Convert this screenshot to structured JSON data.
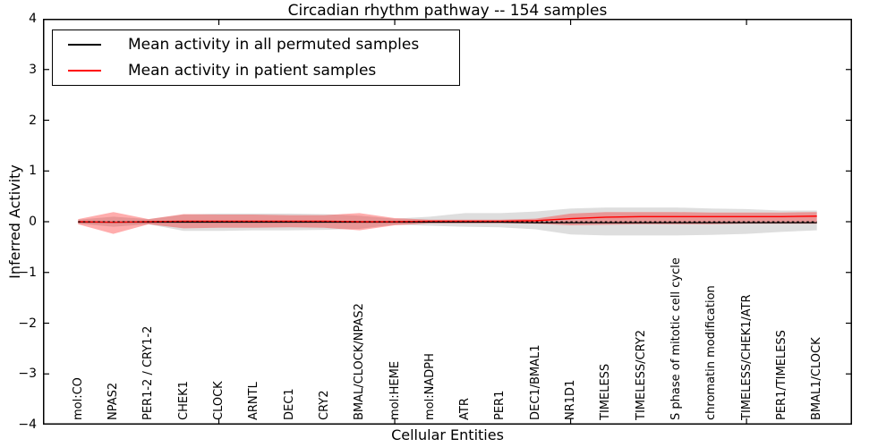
{
  "figure": {
    "title": "Circadian rhythm pathway -- 154 samples",
    "xlabel": "Cellular Entities",
    "ylabel": "Inferred Activity"
  },
  "legend": {
    "items": [
      {
        "label": "Mean activity in all permuted samples",
        "color": "#000000"
      },
      {
        "label": "Mean activity in patient samples",
        "color": "#ff0000"
      }
    ]
  },
  "chart_data": {
    "type": "line",
    "title": "Circadian rhythm pathway -- 154 samples",
    "xlabel": "Cellular Entities",
    "ylabel": "Inferred Activity",
    "xlim": [
      0,
      23
    ],
    "ylim": [
      -4,
      4
    ],
    "xticks": [
      5,
      10,
      15,
      20
    ],
    "ytick_values": [
      -4,
      -3,
      -2,
      -1,
      0,
      1,
      2,
      3,
      4
    ],
    "ytick_labels": [
      "−4",
      "−3",
      "−2",
      "−1",
      "0",
      "1",
      "2",
      "3",
      "4"
    ],
    "x": [
      1,
      2,
      3,
      4,
      5,
      6,
      7,
      8,
      9,
      10,
      11,
      12,
      13,
      14,
      15,
      16,
      17,
      18,
      19,
      20,
      21,
      22
    ],
    "categories": [
      "mol:CO",
      "NPAS2",
      "PER1-2 / CRY1-2",
      "CHEK1",
      "CLOCK",
      "ARNTL",
      "DEC1",
      "CRY2",
      "BMAL/CLOCK/NPAS2",
      "mol:HEME",
      "mol:NADPH",
      "ATR",
      "PER1",
      "DEC1/BMAL1",
      "NR1D1",
      "TIMELESS",
      "TIMELESS/CRY2",
      "S phase of mitotic cell cycle",
      "chromatin modification",
      "TIMELESS/CHEK1/ATR",
      "PER1/TIMELESS",
      "BMAL1/CLOCK"
    ],
    "grid": false,
    "legend_position": "upper left",
    "series": [
      {
        "name": "Permuted samples band (mean ± std)",
        "type": "band",
        "color": "rgba(0,0,0,0.13)",
        "upper": [
          0.04,
          0.1,
          0.05,
          0.14,
          0.16,
          0.16,
          0.16,
          0.15,
          0.12,
          0.06,
          0.1,
          0.17,
          0.17,
          0.2,
          0.26,
          0.28,
          0.28,
          0.28,
          0.26,
          0.25,
          0.22,
          0.22
        ],
        "lower": [
          -0.04,
          -0.1,
          -0.05,
          -0.18,
          -0.18,
          -0.17,
          -0.17,
          -0.16,
          -0.14,
          -0.06,
          -0.08,
          -0.1,
          -0.11,
          -0.15,
          -0.25,
          -0.27,
          -0.27,
          -0.27,
          -0.26,
          -0.24,
          -0.2,
          -0.17
        ]
      },
      {
        "name": "Patient samples band (mean ± std)",
        "type": "band",
        "color": "rgba(255,0,0,0.32)",
        "upper": [
          0.05,
          0.19,
          0.05,
          0.15,
          0.14,
          0.14,
          0.13,
          0.13,
          0.17,
          0.07,
          0.04,
          0.04,
          0.04,
          0.06,
          0.16,
          0.19,
          0.19,
          0.19,
          0.18,
          0.18,
          0.18,
          0.19
        ],
        "lower": [
          -0.05,
          -0.24,
          -0.05,
          -0.13,
          -0.12,
          -0.12,
          -0.11,
          -0.12,
          -0.17,
          -0.07,
          -0.03,
          -0.03,
          -0.03,
          -0.04,
          -0.07,
          -0.06,
          -0.05,
          -0.05,
          -0.05,
          -0.04,
          -0.04,
          -0.04
        ]
      },
      {
        "name": "Mean activity in all permuted samples",
        "type": "line",
        "color": "#000000",
        "width": 1.2,
        "values": [
          -0.01,
          -0.01,
          -0.01,
          -0.01,
          -0.01,
          -0.01,
          -0.01,
          -0.01,
          -0.01,
          -0.01,
          -0.01,
          -0.01,
          -0.01,
          -0.02,
          -0.02,
          -0.02,
          -0.02,
          -0.02,
          -0.02,
          -0.02,
          -0.02,
          -0.02
        ]
      },
      {
        "name": "Mean activity in patient samples",
        "type": "line",
        "color": "#ff0000",
        "width": 1.4,
        "values": [
          0,
          -0.01,
          0,
          0.01,
          0.01,
          0.01,
          0.01,
          0.01,
          0,
          0,
          0.01,
          0.01,
          0.01,
          0.02,
          0.06,
          0.09,
          0.1,
          0.1,
          0.1,
          0.1,
          0.1,
          0.11
        ]
      },
      {
        "name": "Zero reference",
        "type": "dashed-line",
        "color": "#000000",
        "width": 1.1,
        "y": 0
      }
    ]
  }
}
